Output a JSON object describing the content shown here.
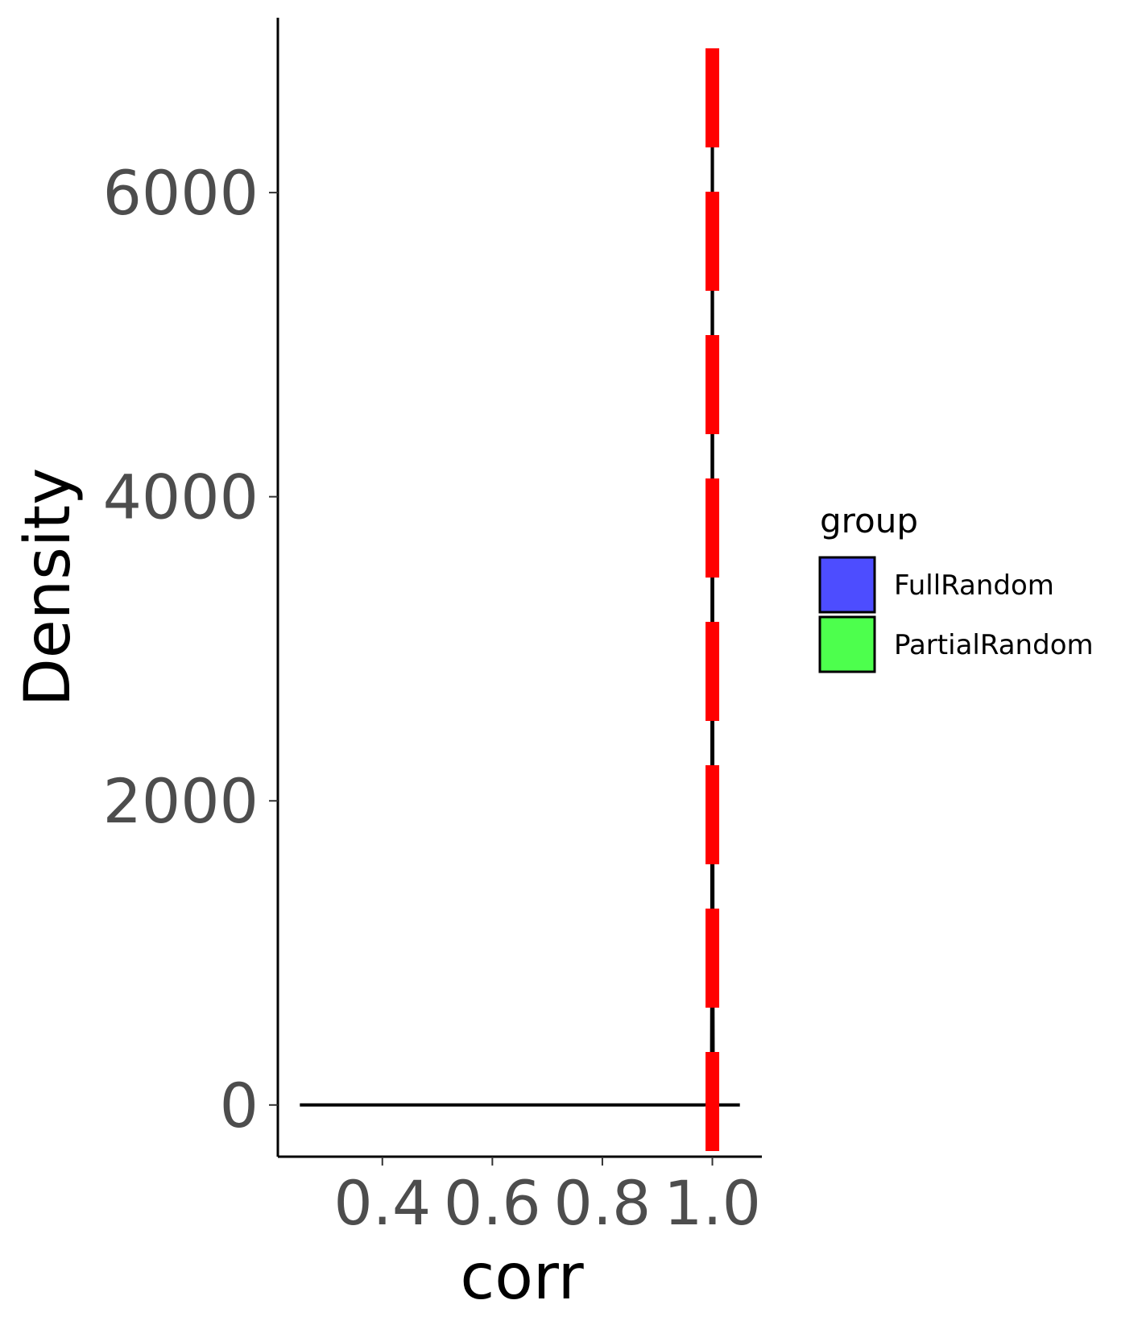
{
  "chart_data": {
    "type": "area",
    "title": "",
    "xlabel": "corr",
    "ylabel": "Density",
    "xlim": [
      0.21,
      1.09
    ],
    "ylim": [
      -340,
      7150
    ],
    "x_ticks": [
      {
        "value": 0.4,
        "label": "0.4"
      },
      {
        "value": 0.6,
        "label": "0.6"
      },
      {
        "value": 0.8,
        "label": "0.8"
      },
      {
        "value": 1.0,
        "label": "1.0"
      }
    ],
    "y_ticks": [
      {
        "value": 0,
        "label": "0"
      },
      {
        "value": 2000,
        "label": "2000"
      },
      {
        "value": 4000,
        "label": "4000"
      },
      {
        "value": 6000,
        "label": "6000"
      }
    ],
    "grid": false,
    "legend": {
      "title": "group",
      "position": "right",
      "items": [
        {
          "label": "FullRandom",
          "color": "#4d4dff"
        },
        {
          "label": "PartialRandom",
          "color": "#4dff4d"
        }
      ]
    },
    "density_curve": {
      "color": "#000000",
      "x": [
        0.25,
        0.5,
        0.7,
        0.9,
        0.985,
        0.996,
        0.9985,
        0.999,
        0.9995,
        1.0,
        1.0005,
        1.001,
        1.0015,
        1.004,
        1.05
      ],
      "y": [
        0,
        0,
        0,
        0,
        0,
        5,
        120,
        800,
        3500,
        6800,
        3500,
        800,
        120,
        0,
        0
      ]
    },
    "reference_line": {
      "x": 1.0,
      "style": "dashed",
      "color": "#ff0000"
    }
  }
}
